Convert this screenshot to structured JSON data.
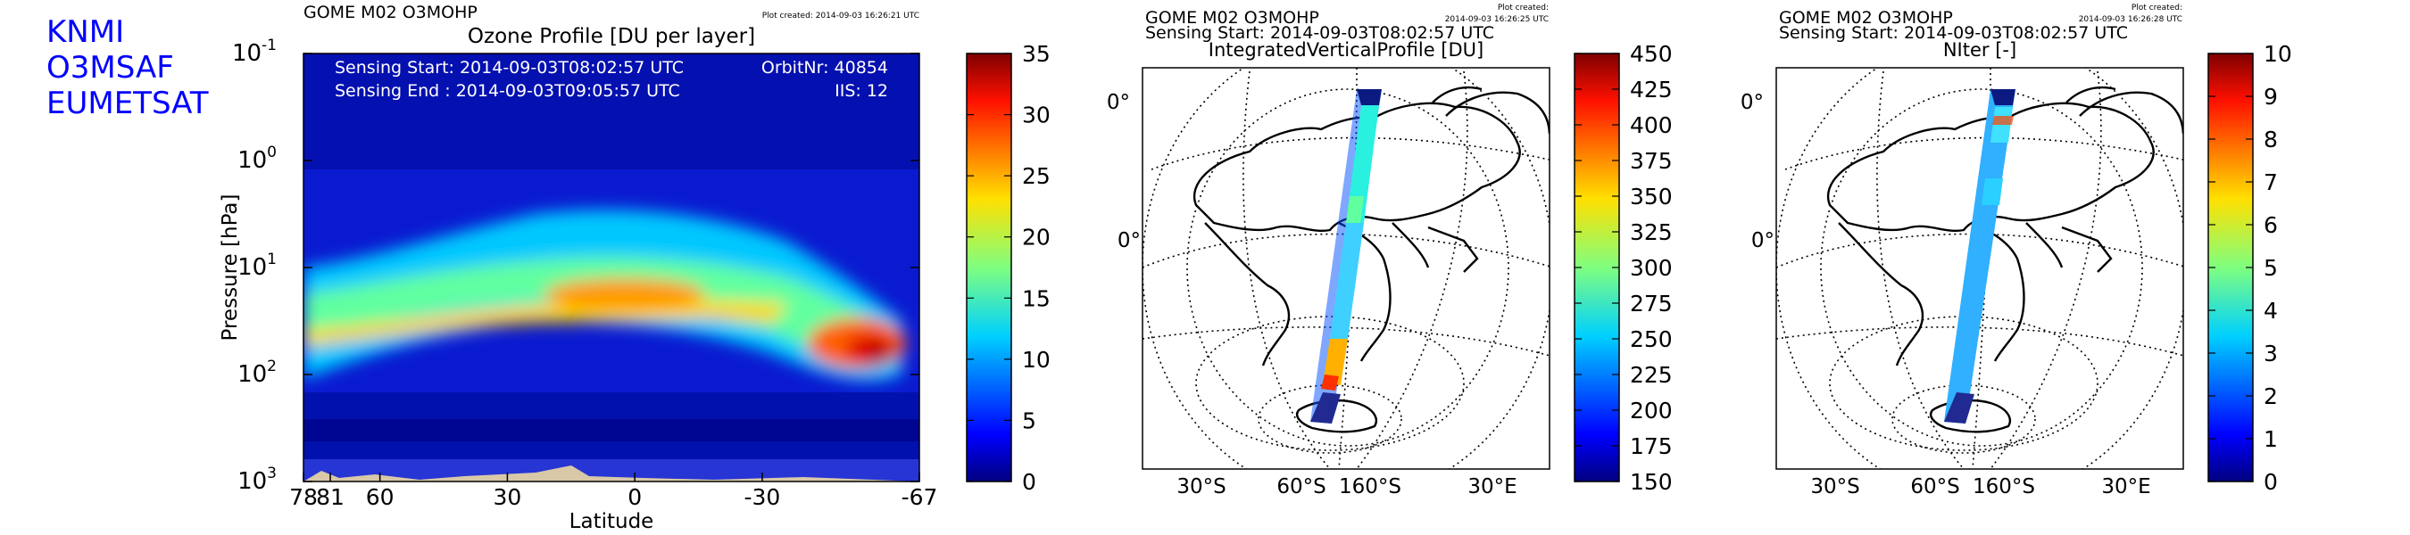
{
  "branding": {
    "line1": "KNMI",
    "line2": "O3MSAF",
    "line3": "EUMETSAT"
  },
  "panels": {
    "profile": {
      "header": "GOME M02 O3MOHP",
      "plot_created": "Plot created: 2014-09-03 16:26:21 UTC",
      "sensing_start": "Sensing Start: 2014-09-03T08:02:57 UTC",
      "sensing_end": "Sensing End  : 2014-09-03T09:05:57 UTC",
      "orbit": "OrbitNr: 40854",
      "iis": "IIS: 12"
    },
    "map1": {
      "header": "GOME M02 O3MOHP",
      "plot_created_l1": "Plot created:",
      "plot_created_l2": "2014-09-03 16:26:25 UTC",
      "sensing_start": "Sensing Start: 2014-09-03T08:02:57 UTC"
    },
    "map2": {
      "header": "GOME M02 O3MOHP",
      "plot_created_l1": "Plot created:",
      "plot_created_l2": "2014-09-03 16:26:28 UTC",
      "sensing_start": "Sensing Start: 2014-09-03T08:02:57 UTC"
    }
  },
  "colormap": [
    "#00007f",
    "#0000ff",
    "#007fff",
    "#00ffff",
    "#7fff7f",
    "#ffff00",
    "#ff7f00",
    "#ff0000",
    "#7f0000"
  ],
  "chart_data": [
    {
      "type": "heatmap",
      "title": "Ozone Profile [DU per layer]",
      "xlabel": "Latitude",
      "ylabel": "Pressure [hPa]",
      "xlim": [
        78,
        -67
      ],
      "x_ticks": [
        "78",
        "81",
        "60",
        "30",
        "0",
        "-30",
        "-67"
      ],
      "y_scale": "log",
      "ylim": [
        1000,
        0.1
      ],
      "y_ticks": [
        {
          "base": "10",
          "exp": "-1"
        },
        {
          "base": "10",
          "exp": "0"
        },
        {
          "base": "10",
          "exp": "1"
        },
        {
          "base": "10",
          "exp": "2"
        },
        {
          "base": "10",
          "exp": "3"
        }
      ],
      "colorbar": {
        "min": 0,
        "max": 35,
        "ticks": [
          "0",
          "5",
          "10",
          "15",
          "20",
          "25",
          "30",
          "35"
        ]
      },
      "peak_layer_du": [
        {
          "lat": 78,
          "pressure_hpa": 60,
          "du": 17
        },
        {
          "lat": 60,
          "pressure_hpa": 50,
          "du": 19
        },
        {
          "lat": 30,
          "pressure_hpa": 25,
          "du": 21
        },
        {
          "lat": 0,
          "pressure_hpa": 20,
          "du": 23
        },
        {
          "lat": -30,
          "pressure_hpa": 30,
          "du": 24
        },
        {
          "lat": -55,
          "pressure_hpa": 70,
          "du": 33
        }
      ]
    },
    {
      "type": "map",
      "title": "IntegratedVerticalProfile [DU]",
      "lat_labels": [
        "0°",
        "0°"
      ],
      "lon_labels": [
        "30°S",
        "60°S",
        "160°S",
        "30°E"
      ],
      "colorbar": {
        "min": 150,
        "max": 450,
        "ticks": [
          "150",
          "175",
          "200",
          "225",
          "250",
          "275",
          "300",
          "325",
          "350",
          "375",
          "400",
          "425",
          "450"
        ]
      }
    },
    {
      "type": "map",
      "title": "NIter [-]",
      "lat_labels": [
        "0°",
        "0°"
      ],
      "lon_labels": [
        "30°S",
        "60°S",
        "160°S",
        "30°E"
      ],
      "colorbar": {
        "min": 0,
        "max": 10,
        "ticks": [
          "0",
          "1",
          "2",
          "3",
          "4",
          "5",
          "6",
          "7",
          "8",
          "9",
          "10"
        ]
      }
    }
  ]
}
